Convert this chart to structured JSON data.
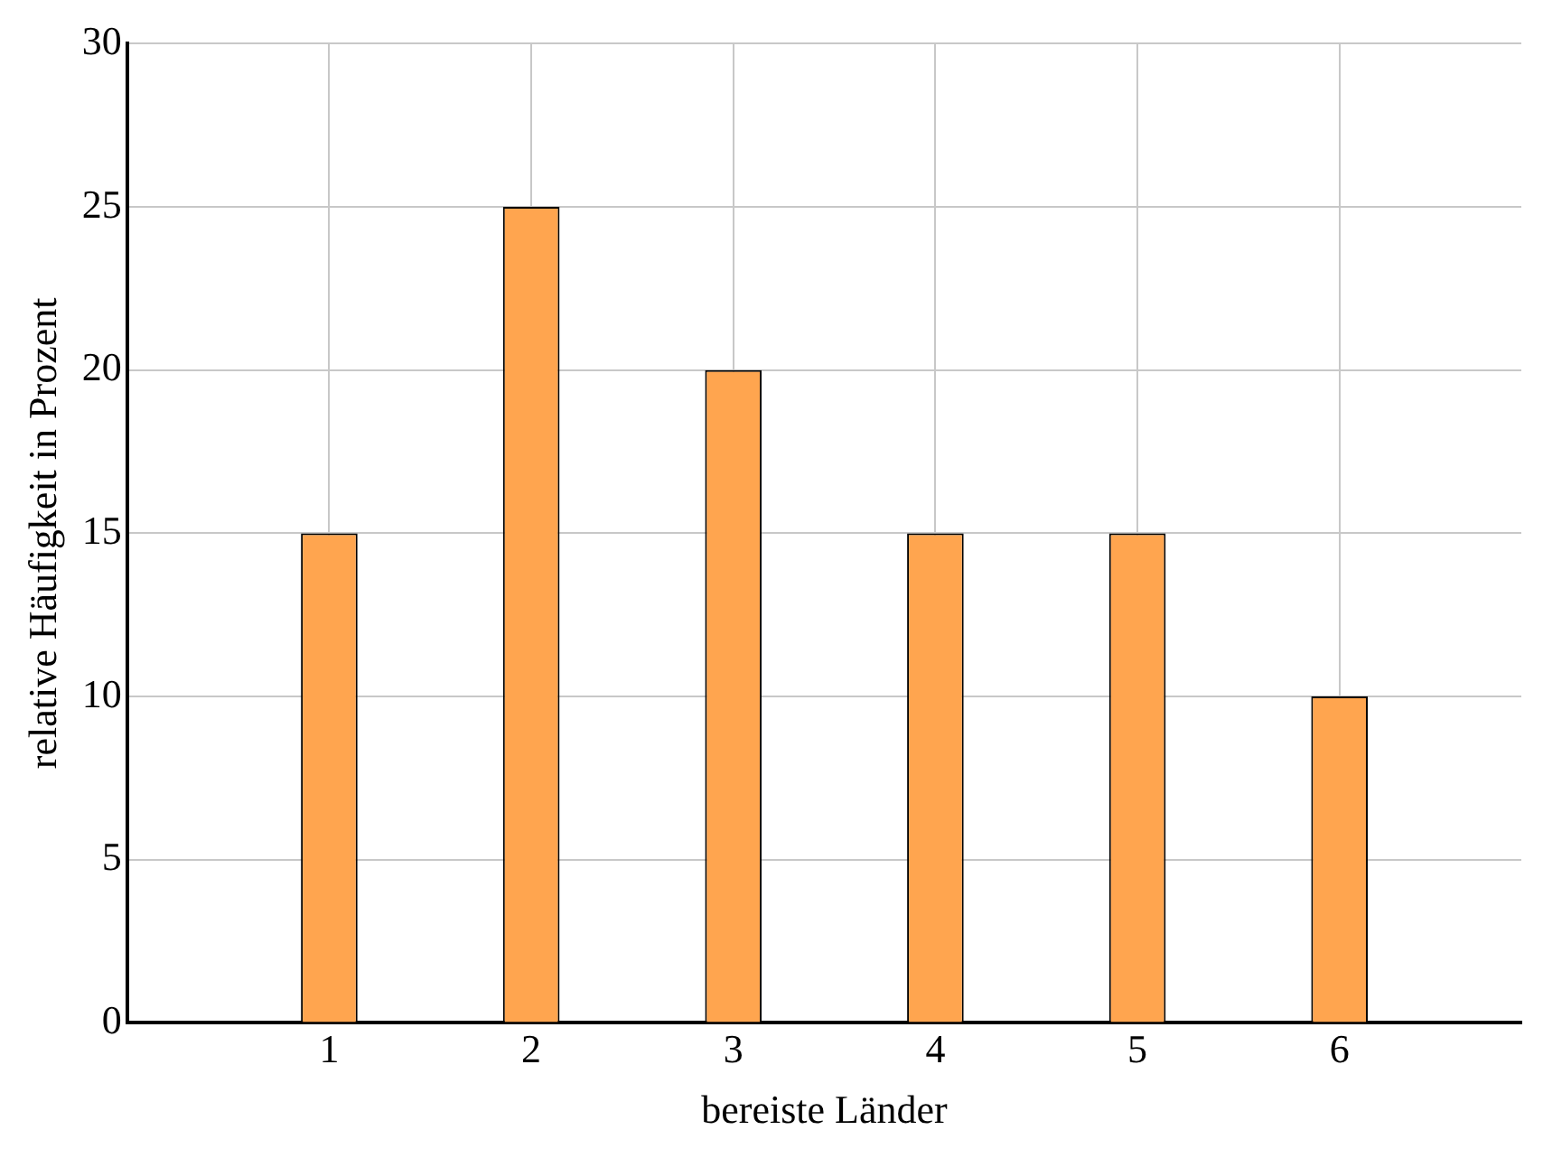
{
  "chart_data": {
    "type": "bar",
    "xlabel": "bereiste Länder",
    "ylabel": "relative Häufigkeit in Prozent",
    "x": [
      1,
      2,
      3,
      4,
      5,
      6
    ],
    "values": [
      15,
      25,
      20,
      15,
      15,
      10
    ],
    "color": "#ffa54f",
    "xlim": [
      0,
      6.9
    ],
    "xticks": [
      1,
      2,
      3,
      4,
      5,
      6
    ],
    "ylim": [
      0,
      30
    ],
    "yticks": [
      0,
      5,
      10,
      15,
      20,
      25,
      30
    ],
    "grid": true,
    "legend": false
  }
}
